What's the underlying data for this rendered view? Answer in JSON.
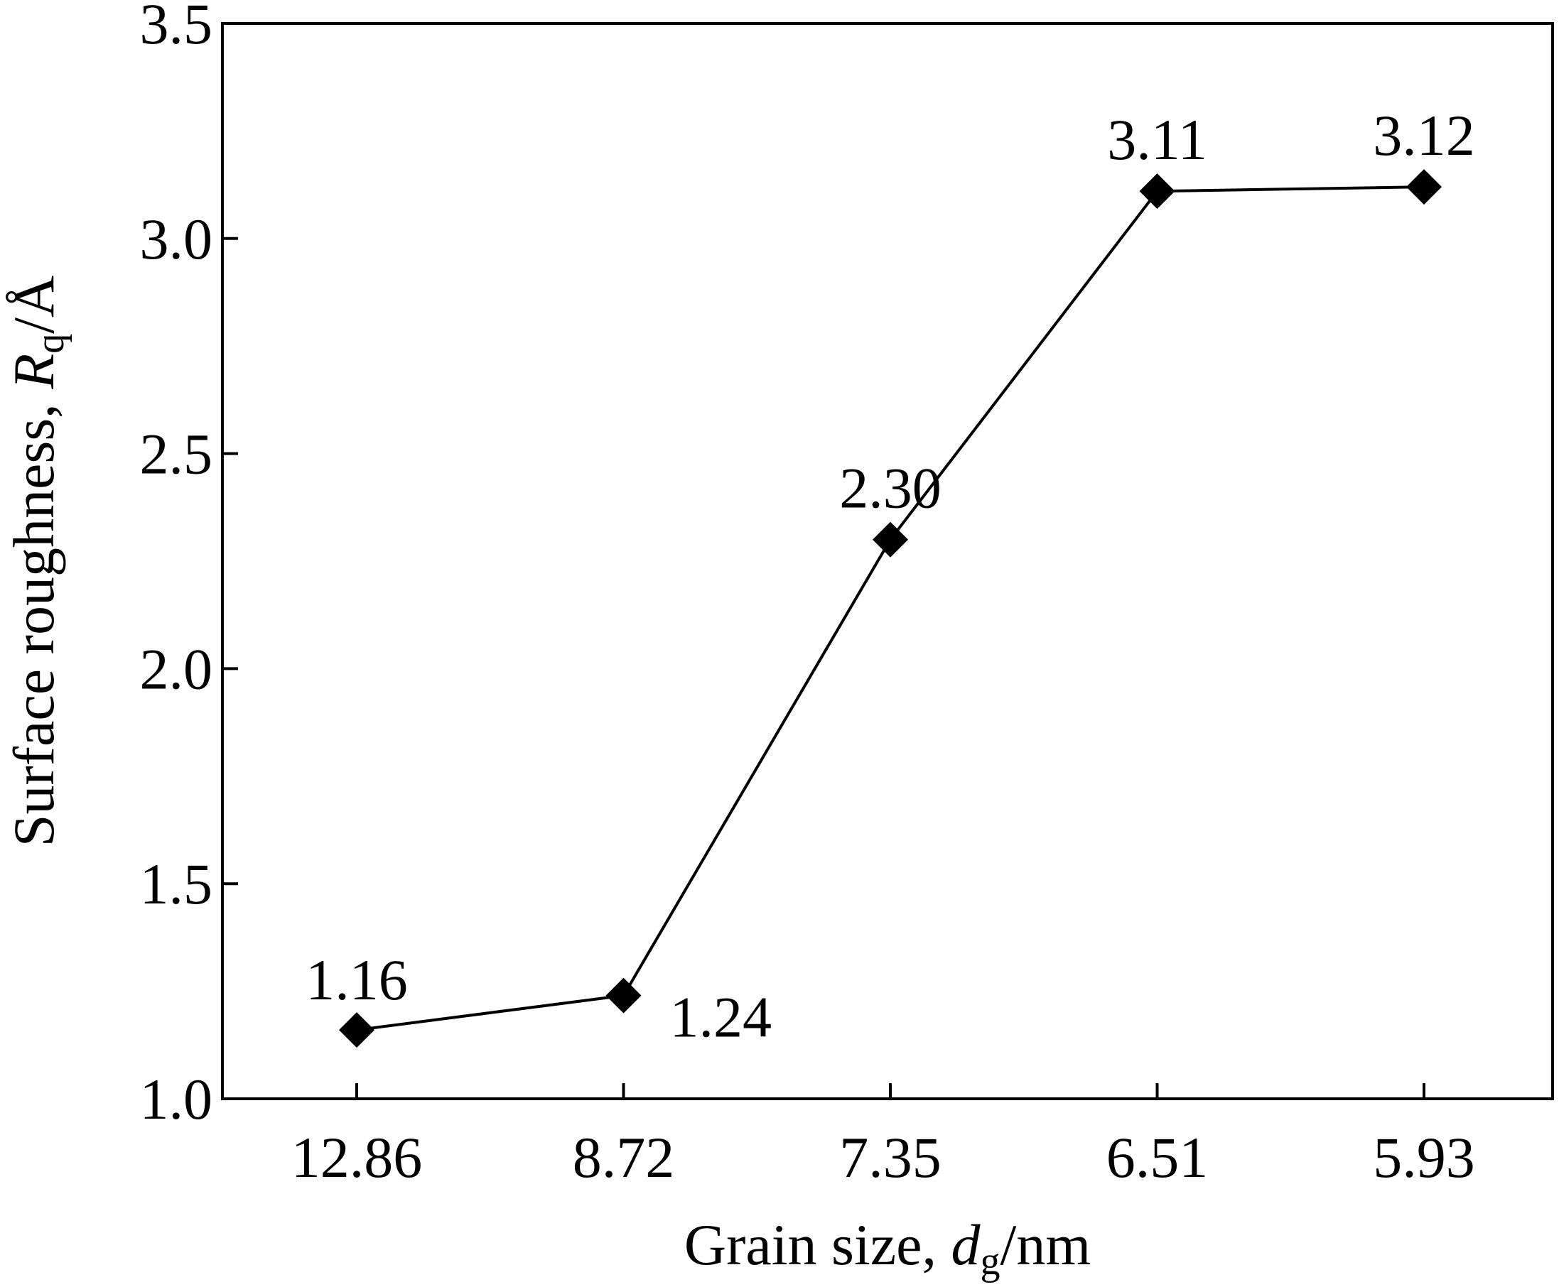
{
  "chart_data": {
    "type": "line",
    "categories": [
      "12.86",
      "8.72",
      "7.35",
      "6.51",
      "5.93"
    ],
    "values": [
      1.16,
      1.24,
      2.3,
      3.11,
      3.12
    ],
    "data_labels": [
      "1.16",
      "1.24",
      "2.30",
      "3.11",
      "3.12"
    ],
    "xlabel": {
      "prefix": "Grain size, ",
      "symbol": "d",
      "subscript": "g",
      "suffix": "/nm"
    },
    "ylabel": {
      "prefix": "Surface roughness, ",
      "symbol": "R",
      "subscript": "q",
      "suffix": "/Å"
    },
    "ylim": [
      1.0,
      3.5
    ],
    "yticks": [
      "1.0",
      "1.5",
      "2.0",
      "2.5",
      "3.0",
      "3.5"
    ],
    "marker": "diamond",
    "line_color": "#000000",
    "marker_color": "#000000",
    "grid": false,
    "legend": "none"
  }
}
